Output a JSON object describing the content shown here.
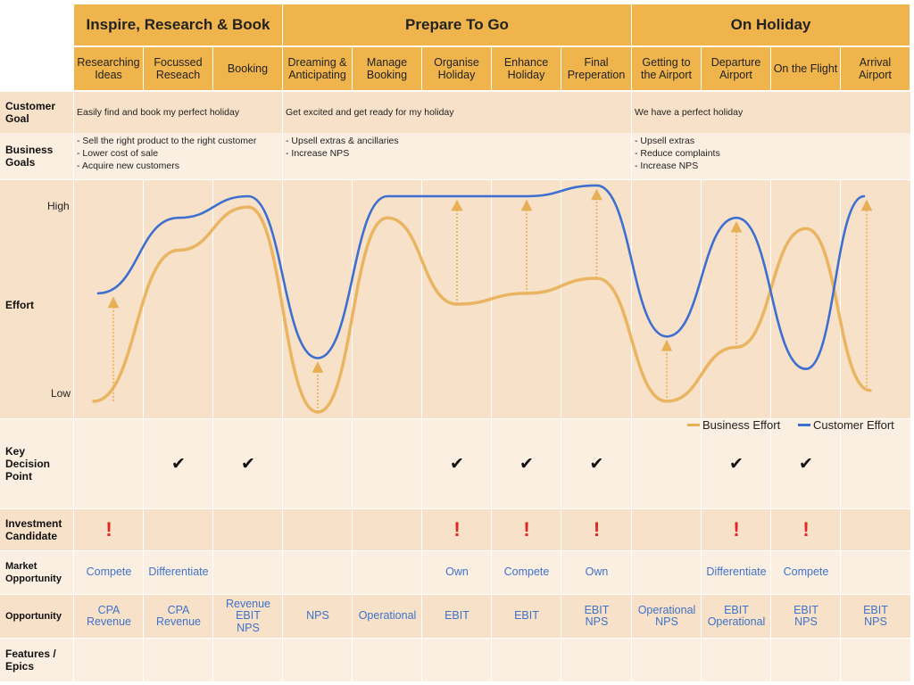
{
  "phases": [
    {
      "label": "Inspire, Research & Book"
    },
    {
      "label": "Prepare To Go"
    },
    {
      "label": "On Holiday"
    }
  ],
  "stages": [
    {
      "label": "Researching\nIdeas"
    },
    {
      "label": "Focussed\nReseach"
    },
    {
      "label": "Booking"
    },
    {
      "label": "Dreaming &\nAnticipating"
    },
    {
      "label": "Manage\nBooking"
    },
    {
      "label": "Organise\nHoliday"
    },
    {
      "label": "Enhance\nHoliday"
    },
    {
      "label": "Final\nPreperation"
    },
    {
      "label": "Getting to\nthe Airport"
    },
    {
      "label": "Departure\nAirport"
    },
    {
      "label": "On the Flight"
    },
    {
      "label": "Arrival\nAirport"
    }
  ],
  "rows": {
    "customer_goal": {
      "label": "Customer\nGoal",
      "values": [
        "Easily find and book my perfect holiday",
        "Get excited and get ready for my holiday",
        "We have a perfect holiday"
      ]
    },
    "business_goals": {
      "label": "Business\nGoals",
      "values": [
        "- Sell the right product to the right customer\n- Lower cost of sale\n- Acquire new customers",
        "- Upsell extras & ancillaries\n- Increase NPS",
        "- Upsell extras\n- Reduce complaints\n- Increase NPS"
      ]
    },
    "effort": {
      "label": "Effort",
      "high": "High",
      "low": "Low"
    },
    "key_decision": {
      "label": "Key\nDecision\nPoint",
      "mark": "✔"
    },
    "investment": {
      "label": "Investment\nCandidate",
      "mark": "!"
    },
    "market": {
      "label": "Market\nOpportunity",
      "values": [
        "Compete",
        "Differentiate",
        "",
        "",
        "",
        "Own",
        "Compete",
        "Own",
        "",
        "Differentiate",
        "Compete",
        ""
      ]
    },
    "opportunity": {
      "label": "Opportunity",
      "values": [
        "CPA\nRevenue",
        "CPA\nRevenue",
        "Revenue\nEBIT\nNPS",
        "NPS",
        "Operational",
        "EBIT",
        "EBIT",
        "EBIT\nNPS",
        "Operational\nNPS",
        "EBIT\nOperational",
        "EBIT\nNPS",
        "EBIT\nNPS"
      ]
    },
    "features": {
      "label": "Features /\nEpics"
    }
  },
  "legend": {
    "business": "Business Effort",
    "customer": "Customer Effort"
  },
  "colors": {
    "business": "#e8b056",
    "customer": "#3d6fd1",
    "header": "#f0b44d"
  },
  "chart_data": {
    "type": "line",
    "x": [
      "Researching Ideas",
      "Focussed Reseach",
      "Booking",
      "Dreaming & Anticipating",
      "Manage Booking",
      "Organise Holiday",
      "Enhance Holiday",
      "Final Preperation",
      "Getting to the Airport",
      "Departure Airport",
      "On the Flight",
      "Arrival Airport"
    ],
    "ylim": [
      "Low",
      "High"
    ],
    "series": [
      {
        "name": "Business Effort",
        "values": [
          0.05,
          0.75,
          0.95,
          0.0,
          0.9,
          0.5,
          0.55,
          0.62,
          0.05,
          0.3,
          0.85,
          0.1
        ]
      },
      {
        "name": "Customer Effort",
        "values": [
          0.55,
          0.9,
          1.0,
          0.25,
          1.0,
          1.0,
          1.0,
          1.05,
          0.35,
          0.9,
          0.2,
          1.0
        ]
      }
    ],
    "key_decision_points": [
      false,
      true,
      true,
      false,
      false,
      true,
      true,
      true,
      false,
      true,
      true,
      false
    ],
    "investment_candidates": [
      true,
      false,
      false,
      false,
      false,
      true,
      true,
      true,
      false,
      true,
      true,
      false
    ]
  }
}
